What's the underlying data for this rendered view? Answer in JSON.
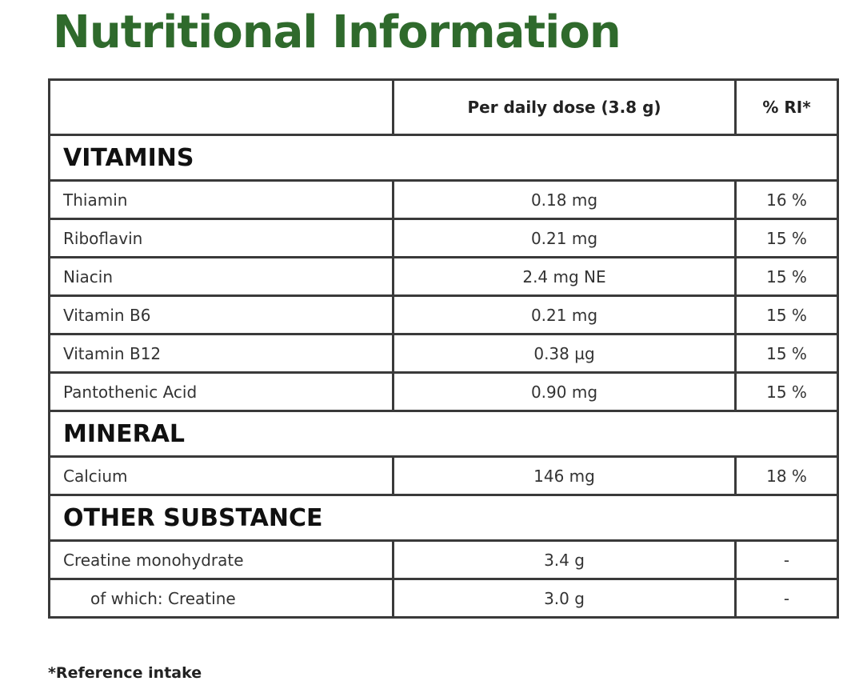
{
  "title": "Nutritional Information",
  "table": {
    "header": {
      "dose": "Per daily dose (3.8 g)",
      "ri": "% RI*"
    },
    "sections": [
      {
        "name": "VITAMINS",
        "rows": [
          [
            "Thiamin",
            "0.18 mg",
            "16 %"
          ],
          [
            "Riboflavin",
            "0.21 mg",
            "15 %"
          ],
          [
            "Niacin",
            "2.4 mg NE",
            "15 %"
          ],
          [
            "Vitamin B6",
            "0.21 mg",
            "15 %"
          ],
          [
            "Vitamin B12",
            "0.38 µg",
            "15 %"
          ],
          [
            "Pantothenic Acid",
            "0.90 mg",
            "15 %"
          ]
        ]
      },
      {
        "name": "MINERAL",
        "rows": [
          [
            "Calcium",
            "146 mg",
            "18 %"
          ]
        ]
      },
      {
        "name": "OTHER SUBSTANCE",
        "rows": [
          [
            "Creatine monohydrate",
            "3.4 g",
            "-"
          ]
        ],
        "sub_rows": [
          [
            "of which: Creatine",
            "3.0 g",
            "-"
          ]
        ]
      }
    ]
  },
  "footnote": "*Reference intake"
}
